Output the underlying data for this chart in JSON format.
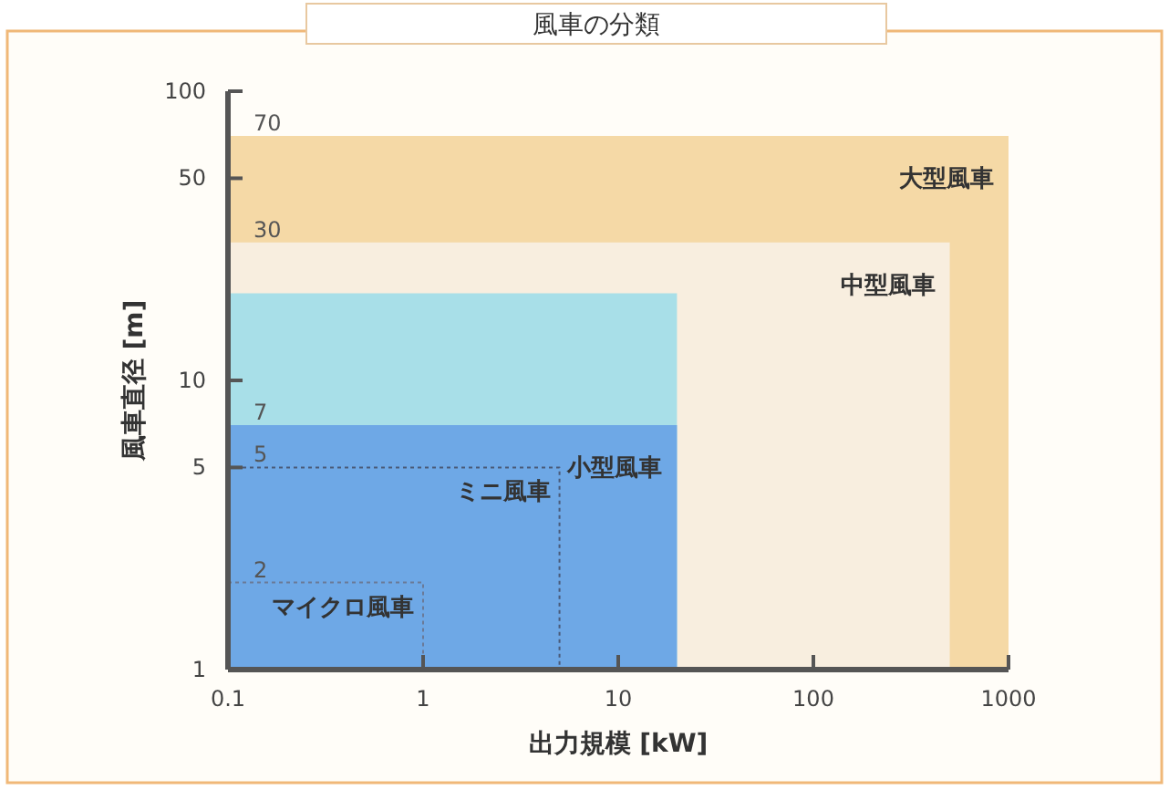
{
  "chart_data": {
    "type": "area",
    "title": "風車の分類",
    "xlabel": "出力規模 [kW]",
    "ylabel": "風車直径 [m]",
    "log": "xy",
    "xlim": [
      0.1,
      1000
    ],
    "ylim": [
      1,
      100
    ],
    "xticks": [
      0.1,
      1,
      10,
      100,
      1000
    ],
    "yticks": [
      1,
      5,
      10,
      50,
      100
    ],
    "grid": false,
    "legend": false,
    "series": [
      {
        "type": "area",
        "name": "大型風車",
        "x": [
          0.1,
          1000
        ],
        "values": [
          70,
          70
        ],
        "value_labels": [
          "70",
          null
        ],
        "color": "#f5d9a6"
      },
      {
        "type": "area",
        "name": "中型風車",
        "x": [
          0.1,
          500
        ],
        "values": [
          30,
          30
        ],
        "value_labels": [
          "30",
          null
        ],
        "color": "#f8eedf"
      },
      {
        "type": "area",
        "x": [
          0.1,
          20
        ],
        "values": [
          20,
          20
        ],
        "color": "#a8dfe8"
      },
      {
        "type": "area",
        "name": "小型風車",
        "x": [
          0.1,
          20
        ],
        "values": [
          7,
          7
        ],
        "value_labels": [
          "7",
          null
        ],
        "color": "#6ea8e6"
      },
      {
        "type": "line",
        "name": "ミニ風車",
        "x": [
          0.1,
          5,
          5
        ],
        "values": [
          5,
          5,
          1
        ],
        "value_labels": [
          "5",
          null,
          null
        ],
        "color": "#4a5a78",
        "line_style": "dotted"
      },
      {
        "type": "line",
        "name": "マイクロ風車",
        "x": [
          0.1,
          1,
          1
        ],
        "values": [
          2,
          2,
          1
        ],
        "value_labels": [
          "2",
          null,
          null
        ],
        "color": "#6a7a98",
        "line_style": "dotted"
      }
    ]
  }
}
